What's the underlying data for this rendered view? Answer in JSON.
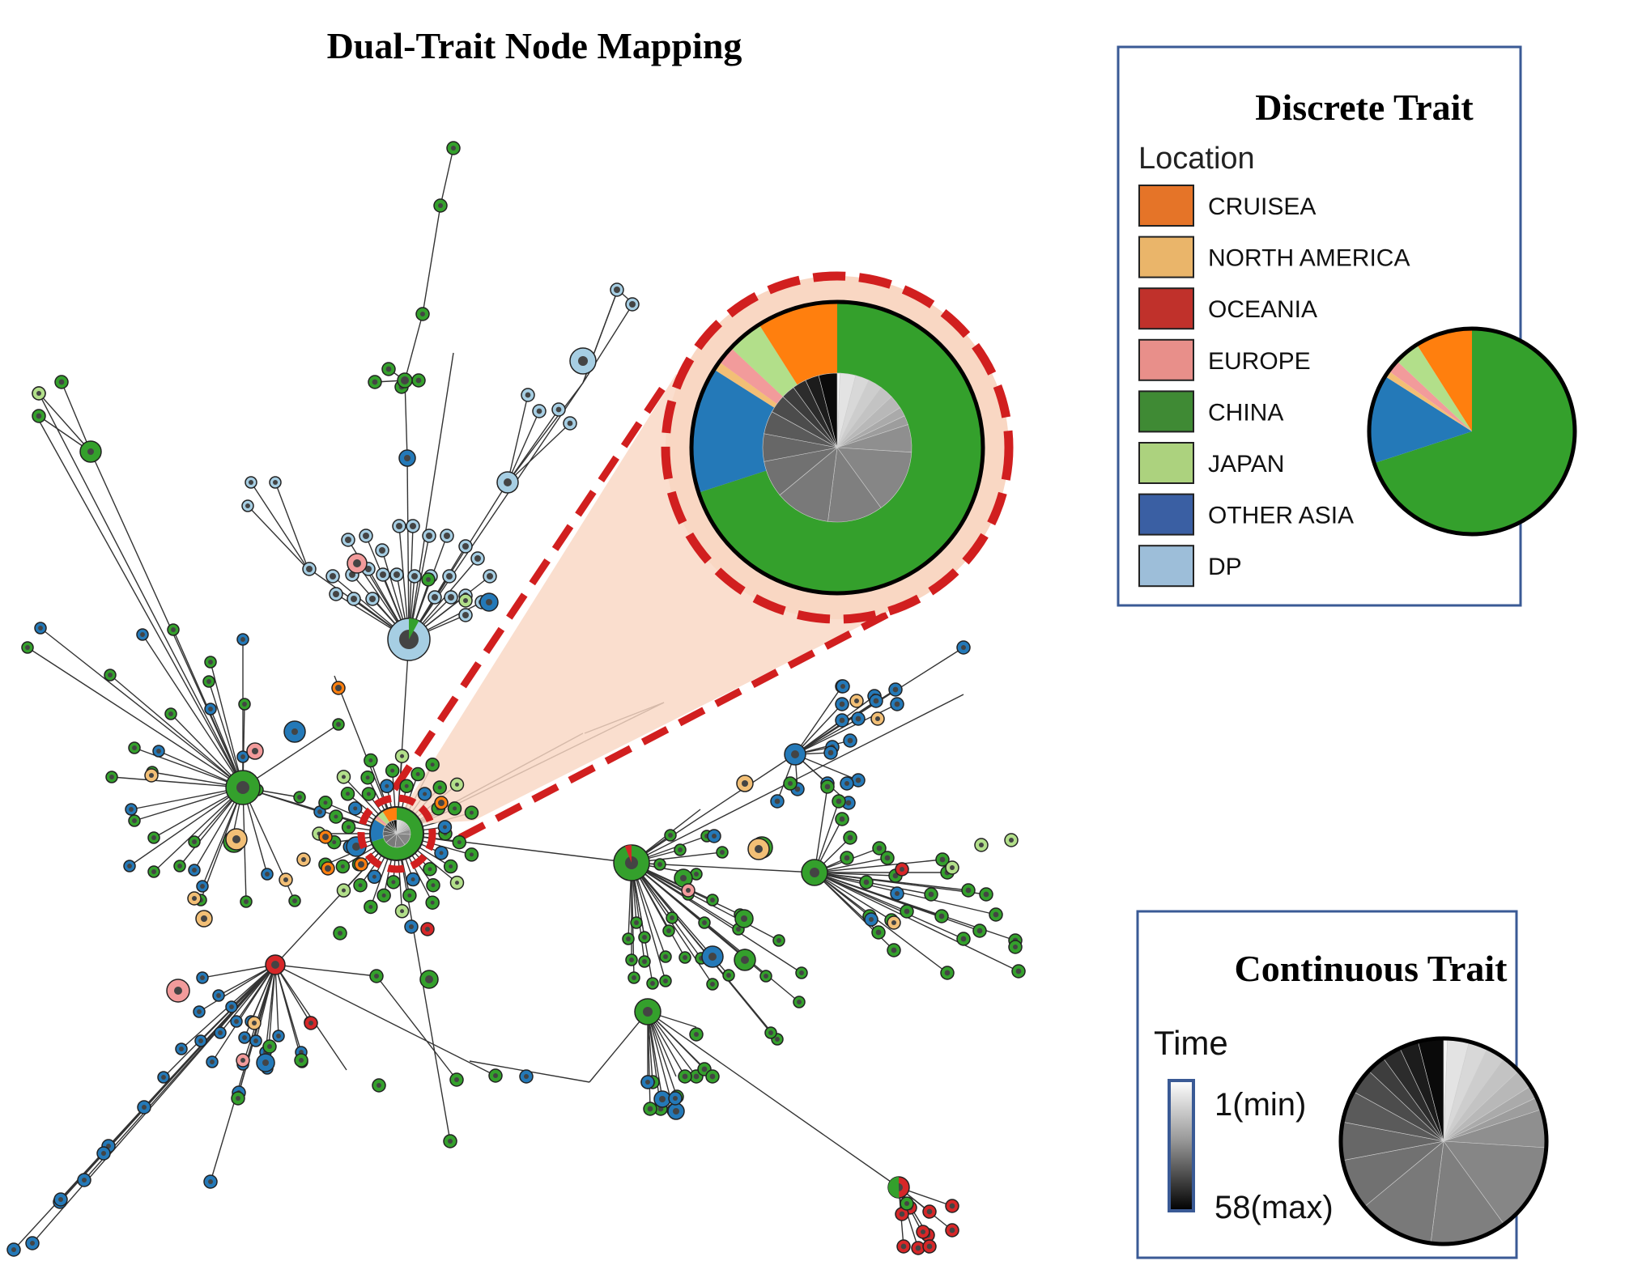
{
  "title": "Dual-Trait Node Mapping",
  "discrete_legend": {
    "heading": "Discrete Trait",
    "subheading": "Location",
    "items": [
      {
        "label": "CRUISEA",
        "color": "#e57428"
      },
      {
        "label": "NORTH AMERICA",
        "color": "#eab56a"
      },
      {
        "label": "OCEANIA",
        "color": "#c0312b"
      },
      {
        "label": "EUROPE",
        "color": "#e88f8a"
      },
      {
        "label": "CHINA",
        "color": "#3f8a34"
      },
      {
        "label": "JAPAN",
        "color": "#acd27e"
      },
      {
        "label": "OTHER ASIA",
        "color": "#3a5fa3"
      },
      {
        "label": "DP",
        "color": "#9dbed9"
      }
    ]
  },
  "continuous_legend": {
    "heading": "Continuous Trait",
    "subheading": "Time",
    "min_label": "1(min)",
    "max_label": "58(max)"
  },
  "node_colors": {
    "china": "#34a02c",
    "other_asia": "#2479b8",
    "dp": "#a6cee3",
    "cruisea": "#ff7f0e",
    "north_america": "#f2bf76",
    "oceania": "#d62728",
    "europe": "#f29b9b",
    "japan": "#b2df8a",
    "highlight": "#d11f1f",
    "zoom_fill": "#f9d7c3"
  },
  "discrete_pie_fractions": [
    {
      "category": "CHINA",
      "fraction": 0.7
    },
    {
      "category": "OTHER ASIA",
      "fraction": 0.14
    },
    {
      "category": "NORTH AMERICA",
      "fraction": 0.01
    },
    {
      "category": "EUROPE",
      "fraction": 0.02
    },
    {
      "category": "JAPAN",
      "fraction": 0.04
    },
    {
      "category": "CRUISEA",
      "fraction": 0.09
    }
  ]
}
